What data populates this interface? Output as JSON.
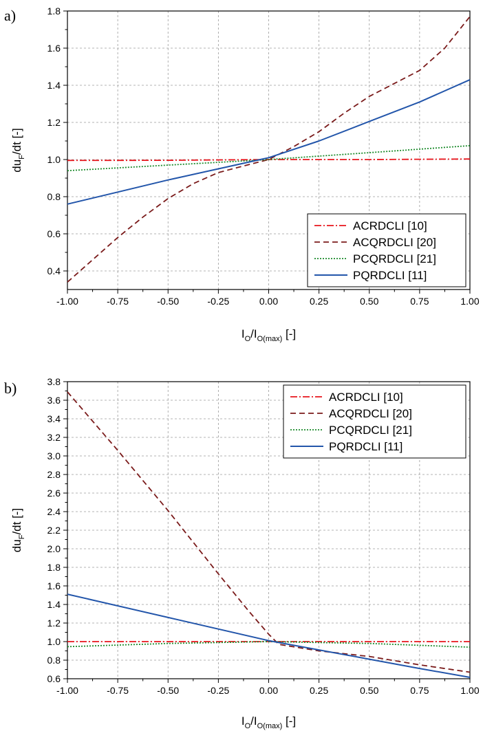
{
  "chart_data": [
    {
      "panel_label": "a)",
      "type": "line",
      "xlabel": {
        "main": "I",
        "sub1": "O",
        "slash": "/I",
        "sub2": "O(max)",
        "unit": " [-]"
      },
      "ylabel": {
        "main": "du",
        "sub": "F",
        "rest": "/dt [-]"
      },
      "xlim": [
        -1.0,
        1.0
      ],
      "ylim": [
        0.3,
        1.8
      ],
      "x_ticks": [
        -1.0,
        -0.75,
        -0.5,
        -0.25,
        0.0,
        0.25,
        0.5,
        0.75,
        1.0
      ],
      "x_tick_labels": [
        "-1.00",
        "-0.75",
        "-0.50",
        "-0.25",
        "0.00",
        "0.25",
        "0.50",
        "0.75",
        "1.00"
      ],
      "y_ticks": [
        0.4,
        0.6,
        0.8,
        1.0,
        1.2,
        1.4,
        1.6,
        1.8
      ],
      "y_tick_labels": [
        "0.4",
        "0.6",
        "0.8",
        "1.0",
        "1.2",
        "1.4",
        "1.6",
        "1.8"
      ],
      "grid": true,
      "legend_position": "bottom-right",
      "series": [
        {
          "name": "ACRDCLI [10]",
          "color": "#e8141b",
          "dash": "10 3 2 3",
          "x": [
            -1.0,
            -0.5,
            0.0,
            0.5,
            1.0
          ],
          "y": [
            0.995,
            0.996,
            1.0,
            1.0,
            1.003
          ]
        },
        {
          "name": "ACQRDCLI [20]",
          "color": "#7a1a1a",
          "dash": "8 5",
          "x": [
            -1.0,
            -0.875,
            -0.75,
            -0.625,
            -0.5,
            -0.375,
            -0.25,
            -0.125,
            0.0,
            0.125,
            0.25,
            0.375,
            0.5,
            0.625,
            0.75,
            0.875,
            1.0
          ],
          "y": [
            0.34,
            0.46,
            0.58,
            0.69,
            0.79,
            0.87,
            0.93,
            0.965,
            1.0,
            1.07,
            1.15,
            1.25,
            1.34,
            1.41,
            1.48,
            1.6,
            1.77
          ]
        },
        {
          "name": "PCQRDCLI [21]",
          "color": "#1a8a2a",
          "dash": "2 2",
          "x": [
            -1.0,
            -0.5,
            0.0,
            0.5,
            1.0
          ],
          "y": [
            0.94,
            0.97,
            1.0,
            1.037,
            1.075
          ]
        },
        {
          "name": "PQRDCLI [11]",
          "color": "#2255aa",
          "dash": "",
          "x": [
            -1.0,
            -0.75,
            -0.5,
            -0.25,
            0.0,
            0.25,
            0.5,
            0.75,
            1.0
          ],
          "y": [
            0.76,
            0.825,
            0.89,
            0.95,
            1.01,
            1.1,
            1.205,
            1.31,
            1.43
          ]
        }
      ]
    },
    {
      "panel_label": "b)",
      "type": "line",
      "xlabel": {
        "main": "I",
        "sub1": "O",
        "slash": "/I",
        "sub2": "O(max)",
        "unit": " [-]"
      },
      "ylabel": {
        "main": "du",
        "sub": "F",
        "rest": "/dt [-]"
      },
      "xlim": [
        -1.0,
        1.0
      ],
      "ylim": [
        0.6,
        3.8
      ],
      "x_ticks": [
        -1.0,
        -0.75,
        -0.5,
        -0.25,
        0.0,
        0.25,
        0.5,
        0.75,
        1.0
      ],
      "x_tick_labels": [
        "-1.00",
        "-0.75",
        "-0.50",
        "-0.25",
        "0.00",
        "0.25",
        "0.50",
        "0.75",
        "1.00"
      ],
      "y_ticks": [
        0.6,
        0.8,
        1.0,
        1.2,
        1.4,
        1.6,
        1.8,
        2.0,
        2.2,
        2.4,
        2.6,
        2.8,
        3.0,
        3.2,
        3.4,
        3.6,
        3.8
      ],
      "y_tick_labels": [
        "0.6",
        "0.8",
        "1.0",
        "1.2",
        "1.4",
        "1.6",
        "1.8",
        "2.0",
        "2.2",
        "2.4",
        "2.6",
        "2.8",
        "3.0",
        "3.2",
        "3.4",
        "3.6",
        "3.8"
      ],
      "grid": true,
      "legend_position": "top-right",
      "series": [
        {
          "name": "ACRDCLI [10]",
          "color": "#e8141b",
          "dash": "10 3 2 3",
          "x": [
            -1.0,
            -0.5,
            0.0,
            0.5,
            1.0
          ],
          "y": [
            1.0,
            1.0,
            1.0,
            1.0,
            1.0
          ]
        },
        {
          "name": "ACQRDCLI [20]",
          "color": "#7a1a1a",
          "dash": "8 5",
          "x": [
            -1.0,
            -0.75,
            -0.5,
            -0.25,
            -0.1,
            0.0,
            0.05,
            0.25,
            0.5,
            0.75,
            1.0
          ],
          "y": [
            3.69,
            3.06,
            2.41,
            1.73,
            1.33,
            1.08,
            0.97,
            0.9,
            0.84,
            0.75,
            0.67
          ]
        },
        {
          "name": "PCQRDCLI [21]",
          "color": "#1a8a2a",
          "dash": "2 2",
          "x": [
            -1.0,
            -0.5,
            0.0,
            0.5,
            1.0
          ],
          "y": [
            0.945,
            0.98,
            1.0,
            0.98,
            0.94
          ]
        },
        {
          "name": "PQRDCLI [11]",
          "color": "#2255aa",
          "dash": "",
          "x": [
            -1.0,
            -0.5,
            0.0,
            0.25,
            0.5,
            0.75,
            1.0
          ],
          "y": [
            1.51,
            1.26,
            1.01,
            0.91,
            0.81,
            0.71,
            0.615
          ]
        }
      ]
    }
  ]
}
